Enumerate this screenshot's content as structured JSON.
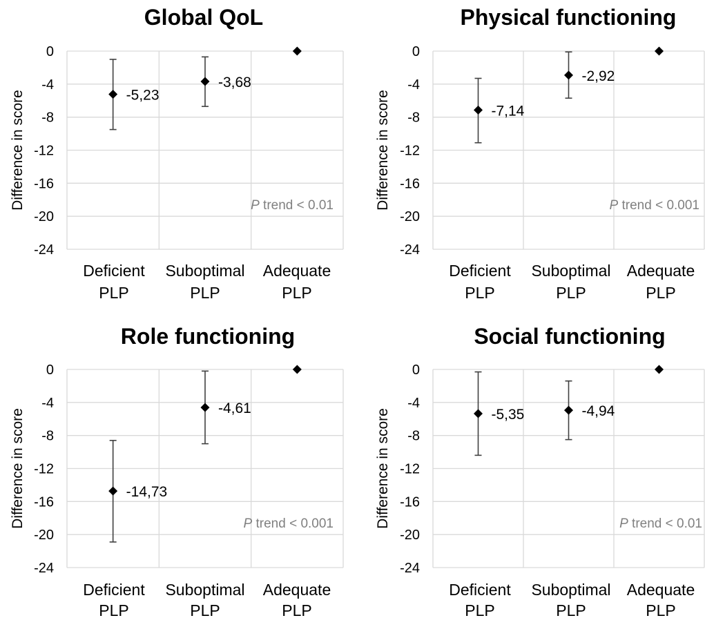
{
  "chart_data": [
    {
      "type": "scatter",
      "title": "Global QoL",
      "ylabel": "Difference in score",
      "ylim": [
        -24,
        0
      ],
      "yticks": [
        0,
        -4,
        -8,
        -12,
        -16,
        -20,
        -24
      ],
      "categories": [
        [
          "Deficient",
          "PLP"
        ],
        [
          "Suboptimal",
          "PLP"
        ],
        [
          "Adequate",
          "PLP"
        ]
      ],
      "points": [
        {
          "value": -5.23,
          "label": "-5,23",
          "lower": -9.5,
          "upper": -1.0
        },
        {
          "value": -3.68,
          "label": "-3,68",
          "lower": -6.7,
          "upper": -0.7
        },
        {
          "value": 0,
          "label": "",
          "lower": null,
          "upper": null
        }
      ],
      "annotation": {
        "italic": "P",
        "text": " trend < 0.01"
      },
      "grid": true
    },
    {
      "type": "scatter",
      "title": "Physical functioning",
      "ylabel": "Difference in score",
      "ylim": [
        -24,
        0
      ],
      "yticks": [
        0,
        -4,
        -8,
        -12,
        -16,
        -20,
        -24
      ],
      "categories": [
        [
          "Deficient",
          "PLP"
        ],
        [
          "Suboptimal",
          "PLP"
        ],
        [
          "Adequate",
          "PLP"
        ]
      ],
      "points": [
        {
          "value": -7.14,
          "label": "-7,14",
          "lower": -11.1,
          "upper": -3.3
        },
        {
          "value": -2.92,
          "label": "-2,92",
          "lower": -5.7,
          "upper": -0.1
        },
        {
          "value": 0,
          "label": "",
          "lower": null,
          "upper": null
        }
      ],
      "annotation": {
        "italic": "P",
        "text": " trend < 0.001"
      },
      "grid": true
    },
    {
      "type": "scatter",
      "title": "Role functioning",
      "ylabel": "Difference in score",
      "ylim": [
        -24,
        0
      ],
      "yticks": [
        0,
        -4,
        -8,
        -12,
        -16,
        -20,
        -24
      ],
      "categories": [
        [
          "Deficient",
          "PLP"
        ],
        [
          "Suboptimal",
          "PLP"
        ],
        [
          "Adequate",
          "PLP"
        ]
      ],
      "points": [
        {
          "value": -14.73,
          "label": "-14,73",
          "lower": -20.9,
          "upper": -8.6
        },
        {
          "value": -4.61,
          "label": "-4,61",
          "lower": -9.0,
          "upper": -0.2
        },
        {
          "value": 0,
          "label": "",
          "lower": null,
          "upper": null
        }
      ],
      "annotation": {
        "italic": "P",
        "text": " trend < 0.001"
      },
      "grid": true
    },
    {
      "type": "scatter",
      "title": "Social functioning",
      "ylabel": "Difference in score",
      "ylim": [
        -24,
        0
      ],
      "yticks": [
        0,
        -4,
        -8,
        -12,
        -16,
        -20,
        -24
      ],
      "categories": [
        [
          "Deficient",
          "PLP"
        ],
        [
          "Suboptimal",
          "PLP"
        ],
        [
          "Adequate",
          "PLP"
        ]
      ],
      "points": [
        {
          "value": -5.35,
          "label": "-5,35",
          "lower": -10.4,
          "upper": -0.3
        },
        {
          "value": -4.94,
          "label": "-4,94",
          "lower": -8.5,
          "upper": -1.4
        },
        {
          "value": 0,
          "label": "",
          "lower": null,
          "upper": null
        }
      ],
      "annotation": {
        "italic": "P",
        "text": " trend < 0.01"
      },
      "grid": true
    }
  ]
}
